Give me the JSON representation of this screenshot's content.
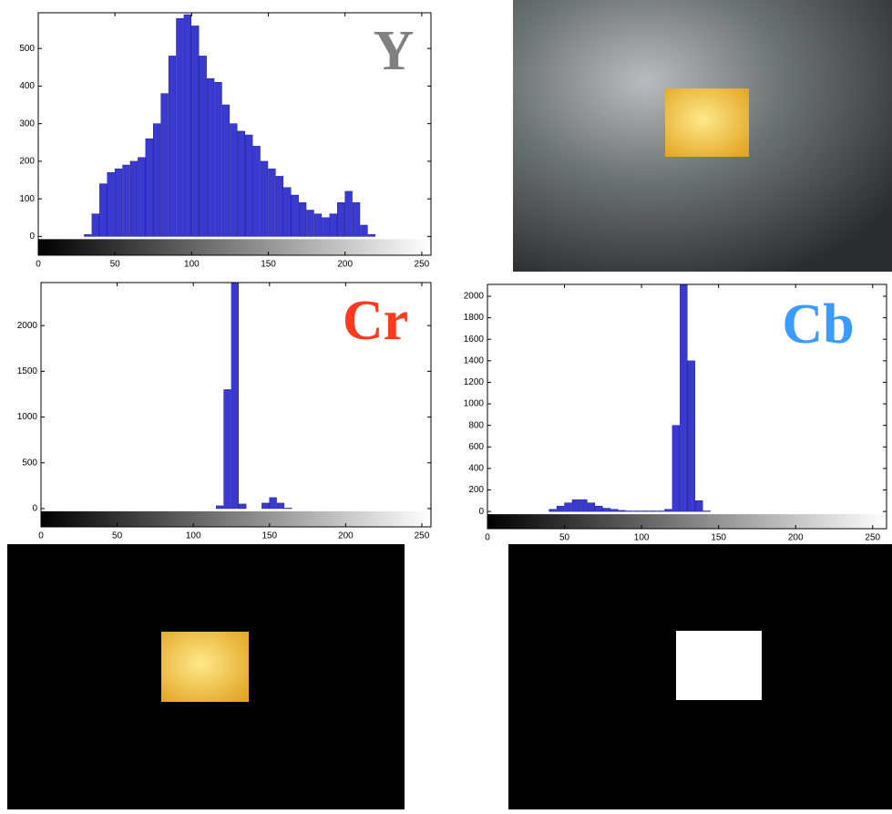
{
  "chart_data": [
    {
      "type": "histogram",
      "annotation": "Y",
      "annotation_color": "#808080",
      "color": "#3a3ad0",
      "bins": [
        0,
        5,
        10,
        15,
        20,
        25,
        30,
        35,
        40,
        45,
        50,
        55,
        60,
        65,
        70,
        75,
        80,
        85,
        90,
        95,
        100,
        105,
        110,
        115,
        120,
        125,
        130,
        135,
        140,
        145,
        150,
        155,
        160,
        165,
        170,
        175,
        180,
        185,
        190,
        195,
        200,
        205,
        210,
        215,
        220,
        225,
        230,
        235,
        240,
        245,
        250,
        255
      ],
      "values": [
        0,
        0,
        0,
        0,
        0,
        0,
        5,
        60,
        140,
        170,
        180,
        190,
        200,
        210,
        260,
        300,
        380,
        480,
        580,
        590,
        560,
        480,
        420,
        410,
        350,
        300,
        280,
        270,
        240,
        200,
        180,
        160,
        130,
        110,
        90,
        70,
        60,
        50,
        60,
        90,
        120,
        90,
        30,
        5,
        0,
        0,
        0,
        0,
        0,
        0,
        0
      ],
      "xlim": [
        0,
        256
      ],
      "ylim": [
        -50,
        595
      ],
      "xticks": [
        0,
        50,
        100,
        150,
        200,
        250
      ],
      "yticks": [
        0,
        100,
        200,
        300,
        400,
        500
      ]
    },
    {
      "type": "histogram",
      "annotation": "Cr",
      "annotation_color": "#ff3b1f",
      "color": "#3a3ad0",
      "bins": [
        0,
        5,
        10,
        15,
        20,
        25,
        30,
        35,
        40,
        45,
        50,
        55,
        60,
        65,
        70,
        75,
        80,
        85,
        90,
        95,
        100,
        105,
        110,
        115,
        120,
        125,
        130,
        135,
        140,
        145,
        150,
        155,
        160,
        165,
        170,
        175,
        180,
        185,
        190,
        195,
        200,
        205,
        210,
        215,
        220,
        225,
        230,
        235,
        240,
        245,
        250,
        255
      ],
      "values": [
        0,
        0,
        0,
        0,
        0,
        0,
        0,
        0,
        0,
        0,
        0,
        0,
        0,
        0,
        0,
        0,
        0,
        0,
        0,
        0,
        0,
        0,
        0,
        30,
        1300,
        2500,
        50,
        0,
        0,
        60,
        120,
        60,
        5,
        0,
        0,
        0,
        0,
        0,
        0,
        0,
        0,
        0,
        0,
        0,
        0,
        0,
        0,
        0,
        0,
        0,
        0
      ],
      "xlim": [
        0,
        256
      ],
      "ylim": [
        -200,
        2470
      ],
      "xticks": [
        0,
        50,
        100,
        150,
        200,
        250
      ],
      "yticks": [
        0,
        500,
        1000,
        1500,
        2000
      ]
    },
    {
      "type": "histogram",
      "annotation": "Cb",
      "annotation_color": "#3b9bff",
      "color": "#3a3ad0",
      "bins": [
        0,
        5,
        10,
        15,
        20,
        25,
        30,
        35,
        40,
        45,
        50,
        55,
        60,
        65,
        70,
        75,
        80,
        85,
        90,
        95,
        100,
        105,
        110,
        115,
        120,
        125,
        130,
        135,
        140,
        145,
        150,
        155,
        160,
        165,
        170,
        175,
        180,
        185,
        190,
        195,
        200,
        205,
        210,
        215,
        220,
        225,
        230,
        235,
        240,
        245,
        250,
        255
      ],
      "values": [
        0,
        0,
        0,
        0,
        0,
        0,
        0,
        0,
        20,
        50,
        80,
        110,
        110,
        80,
        50,
        30,
        20,
        10,
        5,
        5,
        5,
        5,
        5,
        20,
        800,
        2200,
        1400,
        100,
        5,
        0,
        0,
        0,
        0,
        0,
        0,
        0,
        0,
        0,
        0,
        0,
        0,
        0,
        0,
        0,
        0,
        0,
        0,
        0,
        0,
        0,
        0
      ],
      "xlim": [
        0,
        259
      ],
      "ylim": [
        -160,
        2110
      ],
      "xticks": [
        0,
        50,
        100,
        150,
        200,
        250
      ],
      "yticks": [
        0,
        200,
        400,
        600,
        800,
        1000,
        1200,
        1400,
        1600,
        1800,
        2000
      ]
    }
  ]
}
